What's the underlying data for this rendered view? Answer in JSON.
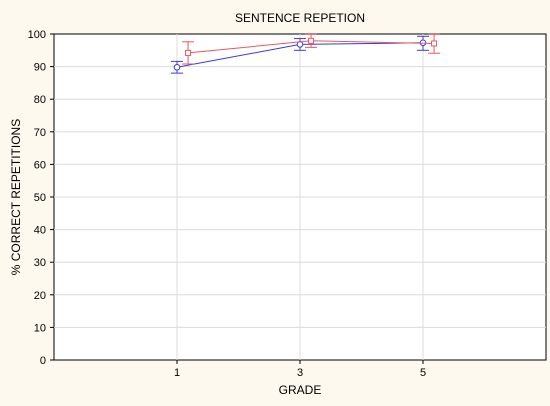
{
  "chart_data": {
    "type": "line",
    "title": "SENTENCE REPETION",
    "xlabel": "GRADE",
    "ylabel": "% CORRECT REPETITIONS",
    "categories": [
      "1",
      "3",
      "5"
    ],
    "x": [
      1,
      3,
      5
    ],
    "xlim": [
      -1,
      7
    ],
    "ylim": [
      0,
      100
    ],
    "yticks": [
      0,
      10,
      20,
      30,
      40,
      50,
      60,
      70,
      80,
      90,
      100
    ],
    "grid": true,
    "legend": "none",
    "series": [
      {
        "color": "#3b3bd1",
        "marker": "circle",
        "values": [
          89.8,
          96.8,
          97.3
        ],
        "err_low": [
          88.0,
          95.0,
          95.0
        ],
        "err_high": [
          91.6,
          98.6,
          99.3
        ]
      },
      {
        "color": "#e8585f",
        "marker": "square",
        "values": [
          94.2,
          97.9,
          97.1
        ],
        "err_low": [
          90.8,
          95.9,
          94.1
        ],
        "err_high": [
          97.6,
          99.9,
          99.9
        ]
      }
    ]
  }
}
